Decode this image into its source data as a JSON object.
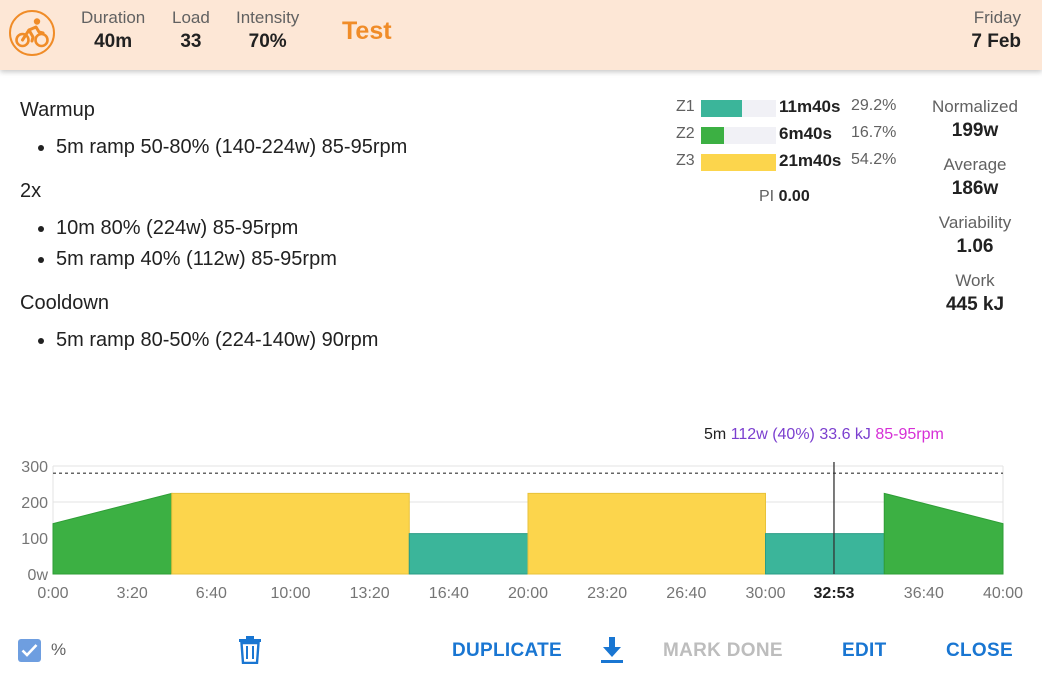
{
  "header": {
    "sport_icon": "cycling-icon",
    "stats": [
      {
        "label": "Duration",
        "value": "40m"
      },
      {
        "label": "Load",
        "value": "33"
      },
      {
        "label": "Intensity",
        "value": "70%"
      }
    ],
    "title": "Test",
    "day": "Friday",
    "date": "7 Feb"
  },
  "description": [
    {
      "title": "Warmup",
      "items": [
        "5m ramp 50-80% (140-224w) 85-95rpm"
      ]
    },
    {
      "title": "2x",
      "items": [
        "10m 80% (224w) 85-95rpm",
        "5m ramp 40% (112w) 85-95rpm"
      ]
    },
    {
      "title": "Cooldown",
      "items": [
        "5m ramp 80-50% (224-140w) 90rpm"
      ]
    }
  ],
  "zones": [
    {
      "name": "Z1",
      "time": "11m40s",
      "pct": "29.2%",
      "fill": 0.54,
      "color": "#3bb59a"
    },
    {
      "name": "Z2",
      "time": "6m40s",
      "pct": "16.7%",
      "fill": 0.3,
      "color": "#3cb043"
    },
    {
      "name": "Z3",
      "time": "21m40s",
      "pct": "54.2%",
      "fill": 1.0,
      "color": "#fcd54c"
    }
  ],
  "pi": {
    "label": "PI",
    "value": "0.00"
  },
  "right_stats": [
    {
      "label": "Normalized",
      "value": "199w"
    },
    {
      "label": "Average",
      "value": "186w"
    },
    {
      "label": "Variability",
      "value": "1.06"
    },
    {
      "label": "Work",
      "value": "445 kJ"
    }
  ],
  "hover": {
    "duration": "5m",
    "power": "112w (40%)",
    "energy": "33.6 kJ",
    "cadence": "85-95rpm",
    "time_label": "32:53"
  },
  "chart_data": {
    "type": "area",
    "ylim": [
      0,
      300
    ],
    "xlim_seconds": [
      0,
      2400
    ],
    "ftp_line_watts": 280,
    "cursor_seconds": 1973,
    "y_ticks": [
      "0w",
      "100",
      "200",
      "300"
    ],
    "y_tick_values": [
      0,
      100,
      200,
      300
    ],
    "x_ticks": [
      "0:00",
      "3:20",
      "6:40",
      "10:00",
      "13:20",
      "16:40",
      "20:00",
      "23:20",
      "26:40",
      "30:00",
      "32:53",
      "36:40",
      "40:00"
    ],
    "x_tick_seconds": [
      0,
      200,
      400,
      600,
      800,
      1000,
      1200,
      1400,
      1600,
      1800,
      1973,
      2200,
      2400
    ],
    "segments": [
      {
        "start": 0,
        "end": 300,
        "from_w": 140,
        "to_w": 224,
        "color": "#3cb043",
        "stroke": "#2e9e36"
      },
      {
        "start": 300,
        "end": 900,
        "from_w": 224,
        "to_w": 224,
        "color": "#fcd54c",
        "stroke": "#e8c23a"
      },
      {
        "start": 900,
        "end": 1200,
        "from_w": 112,
        "to_w": 112,
        "color": "#3bb59a",
        "stroke": "#2a9c85"
      },
      {
        "start": 1200,
        "end": 1800,
        "from_w": 224,
        "to_w": 224,
        "color": "#fcd54c",
        "stroke": "#e8c23a"
      },
      {
        "start": 1800,
        "end": 2100,
        "from_w": 112,
        "to_w": 112,
        "color": "#3bb59a",
        "stroke": "#2a9c85"
      },
      {
        "start": 2100,
        "end": 2400,
        "from_w": 224,
        "to_w": 140,
        "color": "#3cb043",
        "stroke": "#2e9e36"
      }
    ]
  },
  "footer": {
    "percent_checked": true,
    "percent_label": "%",
    "duplicate": "DUPLICATE",
    "mark_done": "MARK DONE",
    "edit": "EDIT",
    "close": "CLOSE"
  }
}
